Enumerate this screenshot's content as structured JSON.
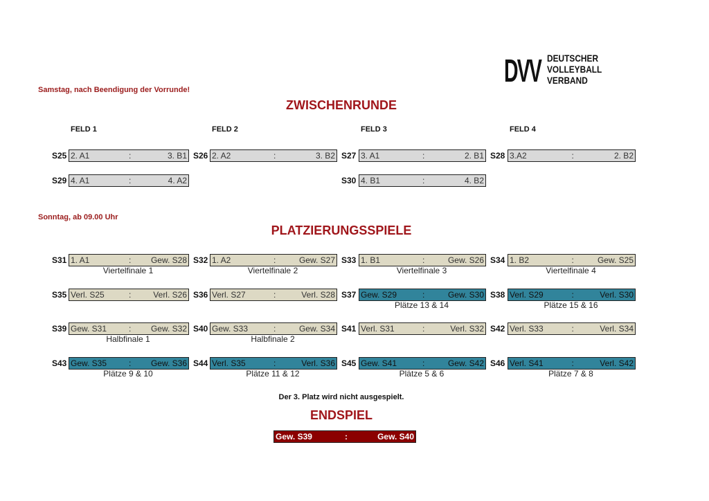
{
  "logo": {
    "mark": "DVV",
    "lines": [
      "DEUTSCHER",
      "VOLLEYBALL",
      "VERBAND"
    ]
  },
  "saturday_note": "Samstag, nach Beendigung der Vorrunde!",
  "zwischenrunde_title": "ZWISCHENRUNDE",
  "fields": [
    "FELD 1",
    "FELD 2",
    "FELD 3",
    "FELD 4"
  ],
  "sunday_note": "Sonntag, ab 09.00 Uhr",
  "platzierung_title": "PLATZIERUNGSSPIELE",
  "third_place_note": "Der 3. Platz wird nicht ausgespielt.",
  "endspiel_title": "ENDSPIEL",
  "colors": {
    "gray": "#d9d9d9",
    "beige": "#ddd9c4",
    "teal": "#31849b",
    "final": "#8b0000",
    "heading": "#a0161b"
  },
  "separator": ":",
  "matches": [
    {
      "id": "S25",
      "left": "2. A1",
      "right": "3. B1",
      "style": "gray",
      "caption": "",
      "row": 0,
      "col": 0
    },
    {
      "id": "S26",
      "left": "2. A2",
      "right": "3. B2",
      "style": "gray",
      "caption": "",
      "row": 0,
      "col": 1
    },
    {
      "id": "S27",
      "left": "3. A1",
      "right": "2. B1",
      "style": "gray",
      "caption": "",
      "row": 0,
      "col": 2
    },
    {
      "id": "S28",
      "left": "3.A2",
      "right": "2. B2",
      "style": "gray",
      "caption": "",
      "row": 0,
      "col": 3
    },
    {
      "id": "S29",
      "left": "4. A1",
      "right": "4. A2",
      "style": "gray",
      "caption": "",
      "row": 1,
      "col": 0
    },
    {
      "id": "S30",
      "left": "4. B1",
      "right": "4. B2",
      "style": "gray",
      "caption": "",
      "row": 1,
      "col": 2
    },
    {
      "id": "S31",
      "left": "1. A1",
      "right": "Gew. S28",
      "style": "beige",
      "caption": "Viertelfinale 1",
      "row": 2,
      "col": 0
    },
    {
      "id": "S32",
      "left": "1. A2",
      "right": "Gew. S27",
      "style": "beige",
      "caption": "Viertelfinale 2",
      "row": 2,
      "col": 1
    },
    {
      "id": "S33",
      "left": "1. B1",
      "right": "Gew. S26",
      "style": "beige",
      "caption": "Viertelfinale 3",
      "row": 2,
      "col": 2
    },
    {
      "id": "S34",
      "left": "1. B2",
      "right": "Gew. S25",
      "style": "beige",
      "caption": "Viertelfinale 4",
      "row": 2,
      "col": 3
    },
    {
      "id": "S35",
      "left": "Verl. S25",
      "right": "Verl. S26",
      "style": "beige",
      "caption": "",
      "row": 3,
      "col": 0
    },
    {
      "id": "S36",
      "left": "Verl. S27",
      "right": "Verl. S28",
      "style": "beige",
      "caption": "",
      "row": 3,
      "col": 1
    },
    {
      "id": "S37",
      "left": "Gew. S29",
      "right": "Gew. S30",
      "style": "teal",
      "caption": "Plätze 13 & 14",
      "row": 3,
      "col": 2
    },
    {
      "id": "S38",
      "left": "Verl. S29",
      "right": "Verl. S30",
      "style": "teal",
      "caption": "Plätze 15 & 16",
      "row": 3,
      "col": 3
    },
    {
      "id": "S39",
      "left": "Gew. S31",
      "right": "Gew. S32",
      "style": "beige",
      "caption": "Halbfinale 1",
      "row": 4,
      "col": 0
    },
    {
      "id": "S40",
      "left": "Gew. S33",
      "right": "Gew. S34",
      "style": "beige",
      "caption": "Halbfinale 2",
      "row": 4,
      "col": 1
    },
    {
      "id": "S41",
      "left": "Verl. S31",
      "right": "Verl. S32",
      "style": "beige",
      "caption": "",
      "row": 4,
      "col": 2
    },
    {
      "id": "S42",
      "left": "Verl. S33",
      "right": "Verl. S34",
      "style": "beige",
      "caption": "",
      "row": 4,
      "col": 3
    },
    {
      "id": "S43",
      "left": "Gew. S35",
      "right": "Gew. S36",
      "style": "teal",
      "caption": "Plätze 9 & 10",
      "row": 5,
      "col": 0
    },
    {
      "id": "S44",
      "left": "Verl. S35",
      "right": "Verl. S36",
      "style": "teal",
      "caption": "Plätze 11 & 12",
      "row": 5,
      "col": 1
    },
    {
      "id": "S45",
      "left": "Gew. S41",
      "right": "Gew. S42",
      "style": "teal",
      "caption": "Plätze 5 & 6",
      "row": 5,
      "col": 2
    },
    {
      "id": "S46",
      "left": "Verl. S41",
      "right": "Verl. S42",
      "style": "teal",
      "caption": "Plätze 7 & 8",
      "row": 5,
      "col": 3
    }
  ],
  "final": {
    "left": "Gew. S39",
    "right": "Gew. S40"
  }
}
